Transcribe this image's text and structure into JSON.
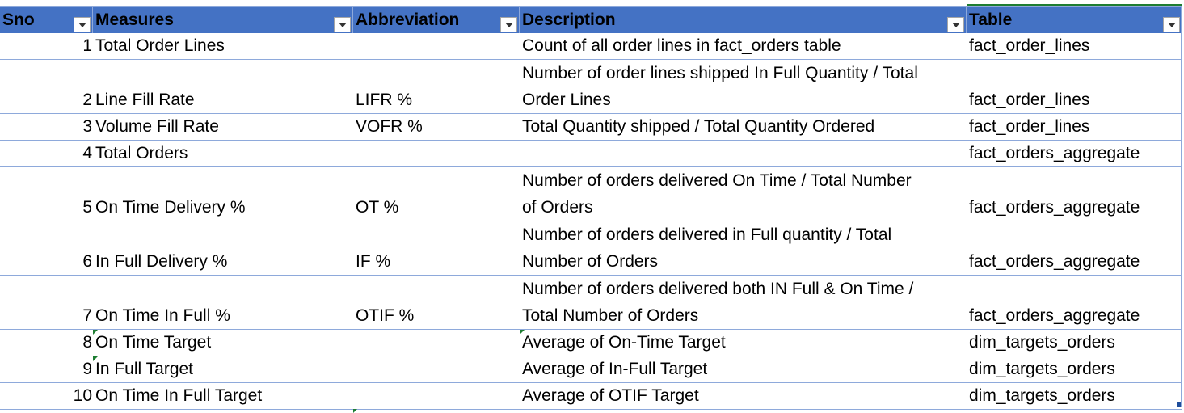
{
  "header": {
    "sno": "Sno",
    "measures": "Measures",
    "abbreviation": "Abbreviation",
    "description": "Description",
    "table": "Table"
  },
  "rows": [
    {
      "sno": "1",
      "measure": "Total Order Lines",
      "abbr": "",
      "desc": [
        "Count of all order lines in fact_orders table"
      ],
      "table": "fact_order_lines"
    },
    {
      "sno": "2",
      "measure": "Line Fill Rate",
      "abbr": "LIFR %",
      "desc": [
        "Number of order lines shipped In Full Quantity / Total",
        "Order Lines"
      ],
      "table": "fact_order_lines"
    },
    {
      "sno": "3",
      "measure": "Volume Fill Rate",
      "abbr": "VOFR %",
      "desc": [
        "Total Quantity shipped / Total Quantity Ordered"
      ],
      "table": "fact_order_lines"
    },
    {
      "sno": "4",
      "measure": "Total Orders",
      "abbr": "",
      "desc": [
        ""
      ],
      "table": "fact_orders_aggregate"
    },
    {
      "sno": "5",
      "measure": "On Time Delivery %",
      "abbr": "OT %",
      "desc": [
        "Number of orders delivered On Time / Total Number",
        "of Orders"
      ],
      "table": "fact_orders_aggregate"
    },
    {
      "sno": "6",
      "measure": "In Full Delivery %",
      "abbr": "IF %",
      "desc": [
        "Number of orders delivered in Full quantity / Total",
        "Number of Orders"
      ],
      "table": "fact_orders_aggregate"
    },
    {
      "sno": "7",
      "measure": "On Time In Full %",
      "abbr": "OTIF %",
      "desc": [
        "Number of orders delivered both IN Full & On Time /",
        "Total Number of Orders"
      ],
      "table": "fact_orders_aggregate"
    },
    {
      "sno": "8",
      "measure": "On Time Target",
      "abbr": "",
      "desc": [
        "Average of On-Time Target"
      ],
      "table": "dim_targets_orders"
    },
    {
      "sno": "9",
      "measure": "In Full Target",
      "abbr": "",
      "desc": [
        "Average of In-Full Target"
      ],
      "table": "dim_targets_orders"
    },
    {
      "sno": "10",
      "measure": "On Time In Full Target",
      "abbr": "",
      "desc": [
        "Average of OTIF Target"
      ],
      "table": "dim_targets_orders"
    }
  ],
  "colors": {
    "header_bg": "#4472C4",
    "header_text": "#FFFFFF",
    "border": "#8EA9DB",
    "comment_marker": "#1E7D32"
  },
  "icons": {
    "filter": "filter-dropdown-icon"
  }
}
